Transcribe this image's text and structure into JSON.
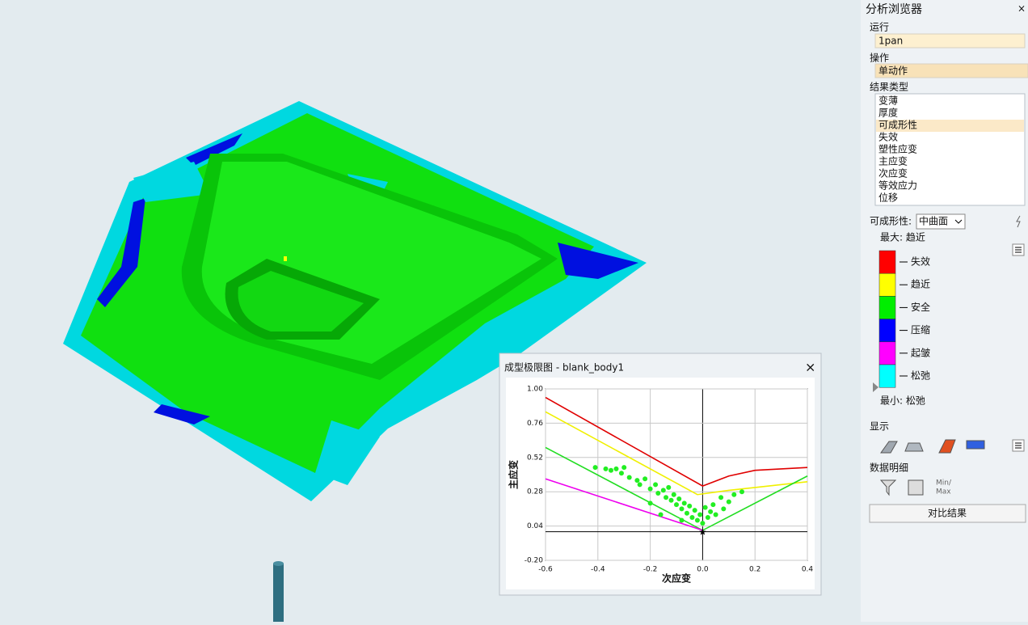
{
  "panel": {
    "title": "分析浏览器",
    "close": "×",
    "run_label": "运行",
    "run_value": "1pan",
    "operation_label": "操作",
    "operation_value": "单动作",
    "result_type_label": "结果类型",
    "result_types": [
      "变薄",
      "厚度",
      "可成形性",
      "失效",
      "塑性应变",
      "主应变",
      "次应变",
      "等效应力",
      "位移"
    ],
    "selected_result": 2,
    "formability_label": "可成形性:",
    "formability_option": "中曲面",
    "max_label": "最大: 趋近",
    "legend": [
      {
        "name": "失效",
        "color": "#ff0000"
      },
      {
        "name": "趋近",
        "color": "#ffff00"
      },
      {
        "name": "安全",
        "color": "#00ee00"
      },
      {
        "name": "压缩",
        "color": "#0000ff"
      },
      {
        "name": "起皱",
        "color": "#ff00ff"
      },
      {
        "name": "松弛",
        "color": "#00ffff"
      }
    ],
    "min_label": "最小: 松弛",
    "display_label": "显示",
    "details_label": "数据明细",
    "min_text": "Min/",
    "max_text": "Max",
    "compare_button": "对比结果"
  },
  "chart_data": {
    "type": "fld",
    "title": "成型极限图 - blank_body1",
    "x_label": "次应变",
    "y_label": "主应变",
    "xlim": [
      -0.6,
      0.4
    ],
    "ylim": [
      -0.2,
      1.0
    ],
    "xticks": [
      -0.6,
      -0.4,
      -0.2,
      {
        "value": 0,
        "label": "0.0"
      },
      0.2,
      0.4
    ],
    "yticks": [
      {
        "value": 1,
        "label": "1.00"
      },
      0.76,
      0.52,
      0.28,
      0.04,
      {
        "value": -0.2,
        "label": "-0.20"
      }
    ],
    "curves": [
      {
        "color": "#e00000",
        "x": [
          -0.6,
          0,
          0.1,
          0.2,
          0.4
        ],
        "values": [
          0.94,
          0.32,
          0.39,
          0.43,
          0.45
        ]
      },
      {
        "color": "#f0f000",
        "x": [
          -0.6,
          -0.02,
          0.1,
          0.2,
          0.4
        ],
        "values": [
          0.84,
          0.26,
          0.29,
          0.31,
          0.35
        ]
      },
      {
        "color": "#22dd22",
        "x": [
          -0.6,
          0,
          0.4
        ],
        "values": [
          0.59,
          0.01,
          0.39
        ]
      },
      {
        "color": "#ee00ee",
        "x": [
          -0.6,
          0
        ],
        "values": [
          0.37,
          0.01
        ]
      }
    ],
    "points": {
      "color": "#22ee22",
      "x": [
        -0.41,
        -0.37,
        -0.35,
        -0.33,
        -0.31,
        -0.3,
        -0.28,
        -0.25,
        -0.24,
        -0.22,
        -0.2,
        -0.18,
        -0.17,
        -0.15,
        -0.14,
        -0.13,
        -0.12,
        -0.11,
        -0.1,
        -0.09,
        -0.08,
        -0.07,
        -0.06,
        -0.05,
        -0.04,
        -0.03,
        -0.02,
        -0.01,
        0,
        0.01,
        0.02,
        0.03,
        0.04,
        0.05,
        0.07,
        0.08,
        0.1,
        0.12,
        0.15,
        -0.16,
        -0.2,
        -0.08
      ],
      "values": [
        0.45,
        0.44,
        0.43,
        0.44,
        0.41,
        0.45,
        0.38,
        0.36,
        0.33,
        0.37,
        0.3,
        0.33,
        0.27,
        0.29,
        0.24,
        0.31,
        0.22,
        0.26,
        0.19,
        0.23,
        0.16,
        0.2,
        0.13,
        0.18,
        0.1,
        0.15,
        0.08,
        0.12,
        0.06,
        0.17,
        0.1,
        0.14,
        0.19,
        0.12,
        0.24,
        0.16,
        0.21,
        0.26,
        0.28,
        0.12,
        0.2,
        0.08
      ]
    }
  }
}
